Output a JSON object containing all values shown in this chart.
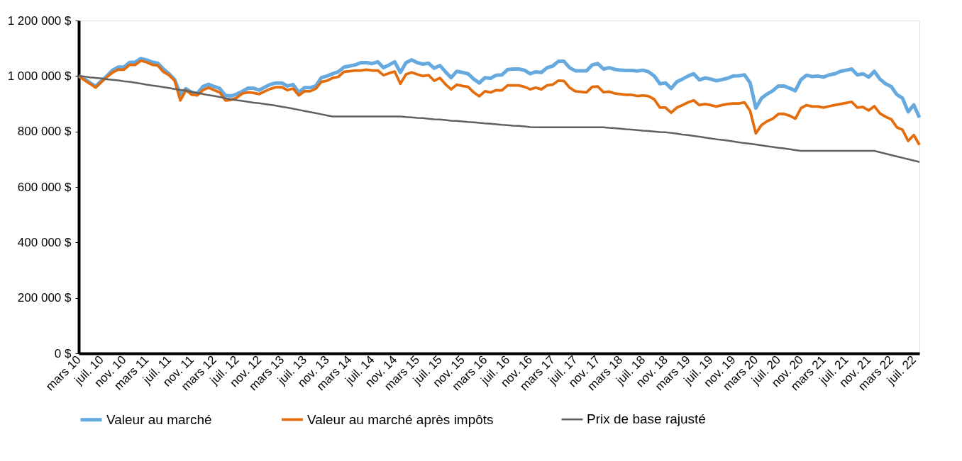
{
  "chart_data": {
    "type": "line",
    "categories": [
      "mars 10",
      null,
      null,
      null,
      "juil. 10",
      null,
      null,
      null,
      "nov. 10",
      null,
      null,
      null,
      "mars 11",
      null,
      null,
      null,
      "juil. 11",
      null,
      null,
      null,
      "nov. 11",
      null,
      null,
      null,
      "mars 12",
      null,
      null,
      null,
      "juil. 12",
      null,
      null,
      null,
      "nov. 12",
      null,
      null,
      null,
      "mars 13",
      null,
      null,
      null,
      "juil. 13",
      null,
      null,
      null,
      "nov. 13",
      null,
      null,
      null,
      "mars 14",
      null,
      null,
      null,
      "juil. 14",
      null,
      null,
      null,
      "nov. 14",
      null,
      null,
      null,
      "mars 15",
      null,
      null,
      null,
      "juil. 15",
      null,
      null,
      null,
      "nov. 15",
      null,
      null,
      null,
      "mars 16",
      null,
      null,
      null,
      "juil. 16",
      null,
      null,
      null,
      "nov. 16",
      null,
      null,
      null,
      "mars 17",
      null,
      null,
      null,
      "juil. 17",
      null,
      null,
      null,
      "nov. 17",
      null,
      null,
      null,
      "mars 18",
      null,
      null,
      null,
      "juil. 18",
      null,
      null,
      null,
      "nov. 18",
      null,
      null,
      null,
      "mars 19",
      null,
      null,
      null,
      "juil. 19",
      null,
      null,
      null,
      "nov. 19",
      null,
      null,
      null,
      "mars 20",
      null,
      null,
      null,
      "juil. 20",
      null,
      null,
      null,
      "nov. 20",
      null,
      null,
      null,
      "mars 21",
      null,
      null,
      null,
      "juil. 21",
      null,
      null,
      null,
      "nov. 21",
      null,
      null,
      null,
      "mars 22",
      null,
      null,
      null,
      "juil. 22",
      null
    ],
    "series": [
      {
        "name": "Valeur au marché",
        "color": "#65a9df",
        "values": [
          1000000,
          990000,
          975000,
          963000,
          982000,
          1000000,
          1021000,
          1032000,
          1032000,
          1049000,
          1050000,
          1063000,
          1058000,
          1050000,
          1046000,
          1025000,
          1008000,
          987000,
          933000,
          954000,
          941000,
          937000,
          962000,
          970000,
          962000,
          955000,
          930000,
          928000,
          935000,
          945000,
          956000,
          956000,
          949000,
          960000,
          970000,
          975000,
          975000,
          964000,
          969000,
          941000,
          958000,
          958000,
          964000,
          994000,
          1000000,
          1008000,
          1015000,
          1032000,
          1036000,
          1040000,
          1048000,
          1048000,
          1045000,
          1051000,
          1030000,
          1040000,
          1051000,
          1013000,
          1048000,
          1058000,
          1048000,
          1043000,
          1046000,
          1028000,
          1038000,
          1015000,
          994000,
          1017000,
          1013000,
          1008000,
          989000,
          975000,
          994000,
          992000,
          1003000,
          1004000,
          1023000,
          1025000,
          1025000,
          1021000,
          1008000,
          1015000,
          1013000,
          1030000,
          1036000,
          1053000,
          1053000,
          1030000,
          1019000,
          1019000,
          1019000,
          1040000,
          1045000,
          1025000,
          1030000,
          1024000,
          1021000,
          1020000,
          1020000,
          1018000,
          1021000,
          1015000,
          1000000,
          972000,
          975000,
          955000,
          979000,
          989000,
          1000000,
          1008000,
          986000,
          993000,
          989000,
          983000,
          987000,
          992000,
          1000000,
          1001000,
          1004000,
          975000,
          884000,
          920000,
          935000,
          947000,
          964000,
          964000,
          956000,
          947000,
          987000,
          1003000,
          998000,
          1000000,
          996000,
          1004000,
          1008000,
          1017000,
          1021000,
          1025000,
          1004000,
          1008000,
          996000,
          1017000,
          989000,
          972000,
          962000,
          933000,
          920000,
          871000,
          896000,
          850000
        ]
      },
      {
        "name": "Valeur au marché après impôts",
        "color": "#e46c0a",
        "values": [
          1000000,
          985000,
          972000,
          958000,
          978000,
          996000,
          1013000,
          1023000,
          1023000,
          1040000,
          1040000,
          1055000,
          1050000,
          1041000,
          1038000,
          1015000,
          1003000,
          983000,
          912000,
          949000,
          933000,
          930000,
          949000,
          958000,
          949000,
          941000,
          912000,
          914000,
          922000,
          937000,
          941000,
          939000,
          935000,
          945000,
          954000,
          960000,
          960000,
          949000,
          955000,
          930000,
          945000,
          945000,
          954000,
          979000,
          983000,
          993000,
          997000,
          1015000,
          1017000,
          1020000,
          1020000,
          1023000,
          1020000,
          1020000,
          1003000,
          1010000,
          1016000,
          972000,
          1006000,
          1013000,
          1006000,
          1000000,
          1003000,
          983000,
          993000,
          970000,
          952000,
          969000,
          964000,
          961000,
          941000,
          927000,
          945000,
          941000,
          949000,
          948000,
          966000,
          966000,
          966000,
          961000,
          952000,
          958000,
          952000,
          966000,
          969000,
          983000,
          982000,
          958000,
          945000,
          943000,
          941000,
          961000,
          962000,
          942000,
          944000,
          937000,
          935000,
          932000,
          932000,
          928000,
          930000,
          927000,
          916000,
          886000,
          886000,
          868000,
          886000,
          895000,
          905000,
          912000,
          895000,
          899000,
          895000,
          890000,
          895000,
          899000,
          901000,
          901000,
          905000,
          874000,
          793000,
          823000,
          837000,
          846000,
          863000,
          863000,
          857000,
          846000,
          884000,
          895000,
          890000,
          890000,
          886000,
          891000,
          895000,
          899000,
          903000,
          907000,
          886000,
          888000,
          876000,
          891000,
          865000,
          853000,
          844000,
          815000,
          806000,
          766000,
          787000,
          752000
        ]
      },
      {
        "name": "Prix de base rajusté",
        "color": "#606060",
        "values": [
          1000000,
          998000,
          995000,
          993000,
          991000,
          988000,
          986000,
          984000,
          981000,
          979000,
          976000,
          973000,
          969000,
          966000,
          963000,
          960000,
          957000,
          953000,
          950000,
          947000,
          943000,
          939000,
          935000,
          931000,
          928000,
          924000,
          920000,
          916000,
          913000,
          910000,
          907000,
          904000,
          902000,
          899000,
          896000,
          893000,
          889000,
          886000,
          882000,
          878000,
          874000,
          870000,
          866000,
          862000,
          858000,
          854000,
          854000,
          854000,
          854000,
          854000,
          854000,
          854000,
          854000,
          854000,
          854000,
          854000,
          854000,
          854000,
          852000,
          851000,
          849000,
          848000,
          846000,
          844000,
          843000,
          841000,
          839000,
          838000,
          836000,
          834000,
          833000,
          831000,
          829000,
          828000,
          826000,
          824000,
          823000,
          821000,
          820000,
          818000,
          816000,
          815000,
          815000,
          815000,
          815000,
          815000,
          815000,
          815000,
          815000,
          815000,
          815000,
          815000,
          815000,
          815000,
          813000,
          812000,
          810000,
          808000,
          807000,
          805000,
          803000,
          802000,
          800000,
          798000,
          797000,
          795000,
          792000,
          789000,
          787000,
          784000,
          781000,
          778000,
          775000,
          772000,
          770000,
          767000,
          764000,
          761000,
          758000,
          756000,
          753000,
          750000,
          747000,
          744000,
          741000,
          739000,
          736000,
          733000,
          730000,
          730000,
          730000,
          730000,
          730000,
          730000,
          730000,
          730000,
          730000,
          730000,
          730000,
          730000,
          730000,
          730000,
          725000,
          720000,
          715000,
          710000,
          705000,
          700000,
          695000,
          690000
        ]
      }
    ],
    "ylim": [
      0,
      1200000
    ],
    "yticks": [
      {
        "value": 0,
        "label": "0 $"
      },
      {
        "value": 200000,
        "label": "200 000 $"
      },
      {
        "value": 400000,
        "label": "400 000 $"
      },
      {
        "value": 600000,
        "label": "600 000 $"
      },
      {
        "value": 800000,
        "label": "800 000 $"
      },
      {
        "value": 1000000,
        "label": "1 000 000 $"
      },
      {
        "value": 1200000,
        "label": "1 200 000 $"
      }
    ],
    "grid": false,
    "legend": "bottom"
  }
}
